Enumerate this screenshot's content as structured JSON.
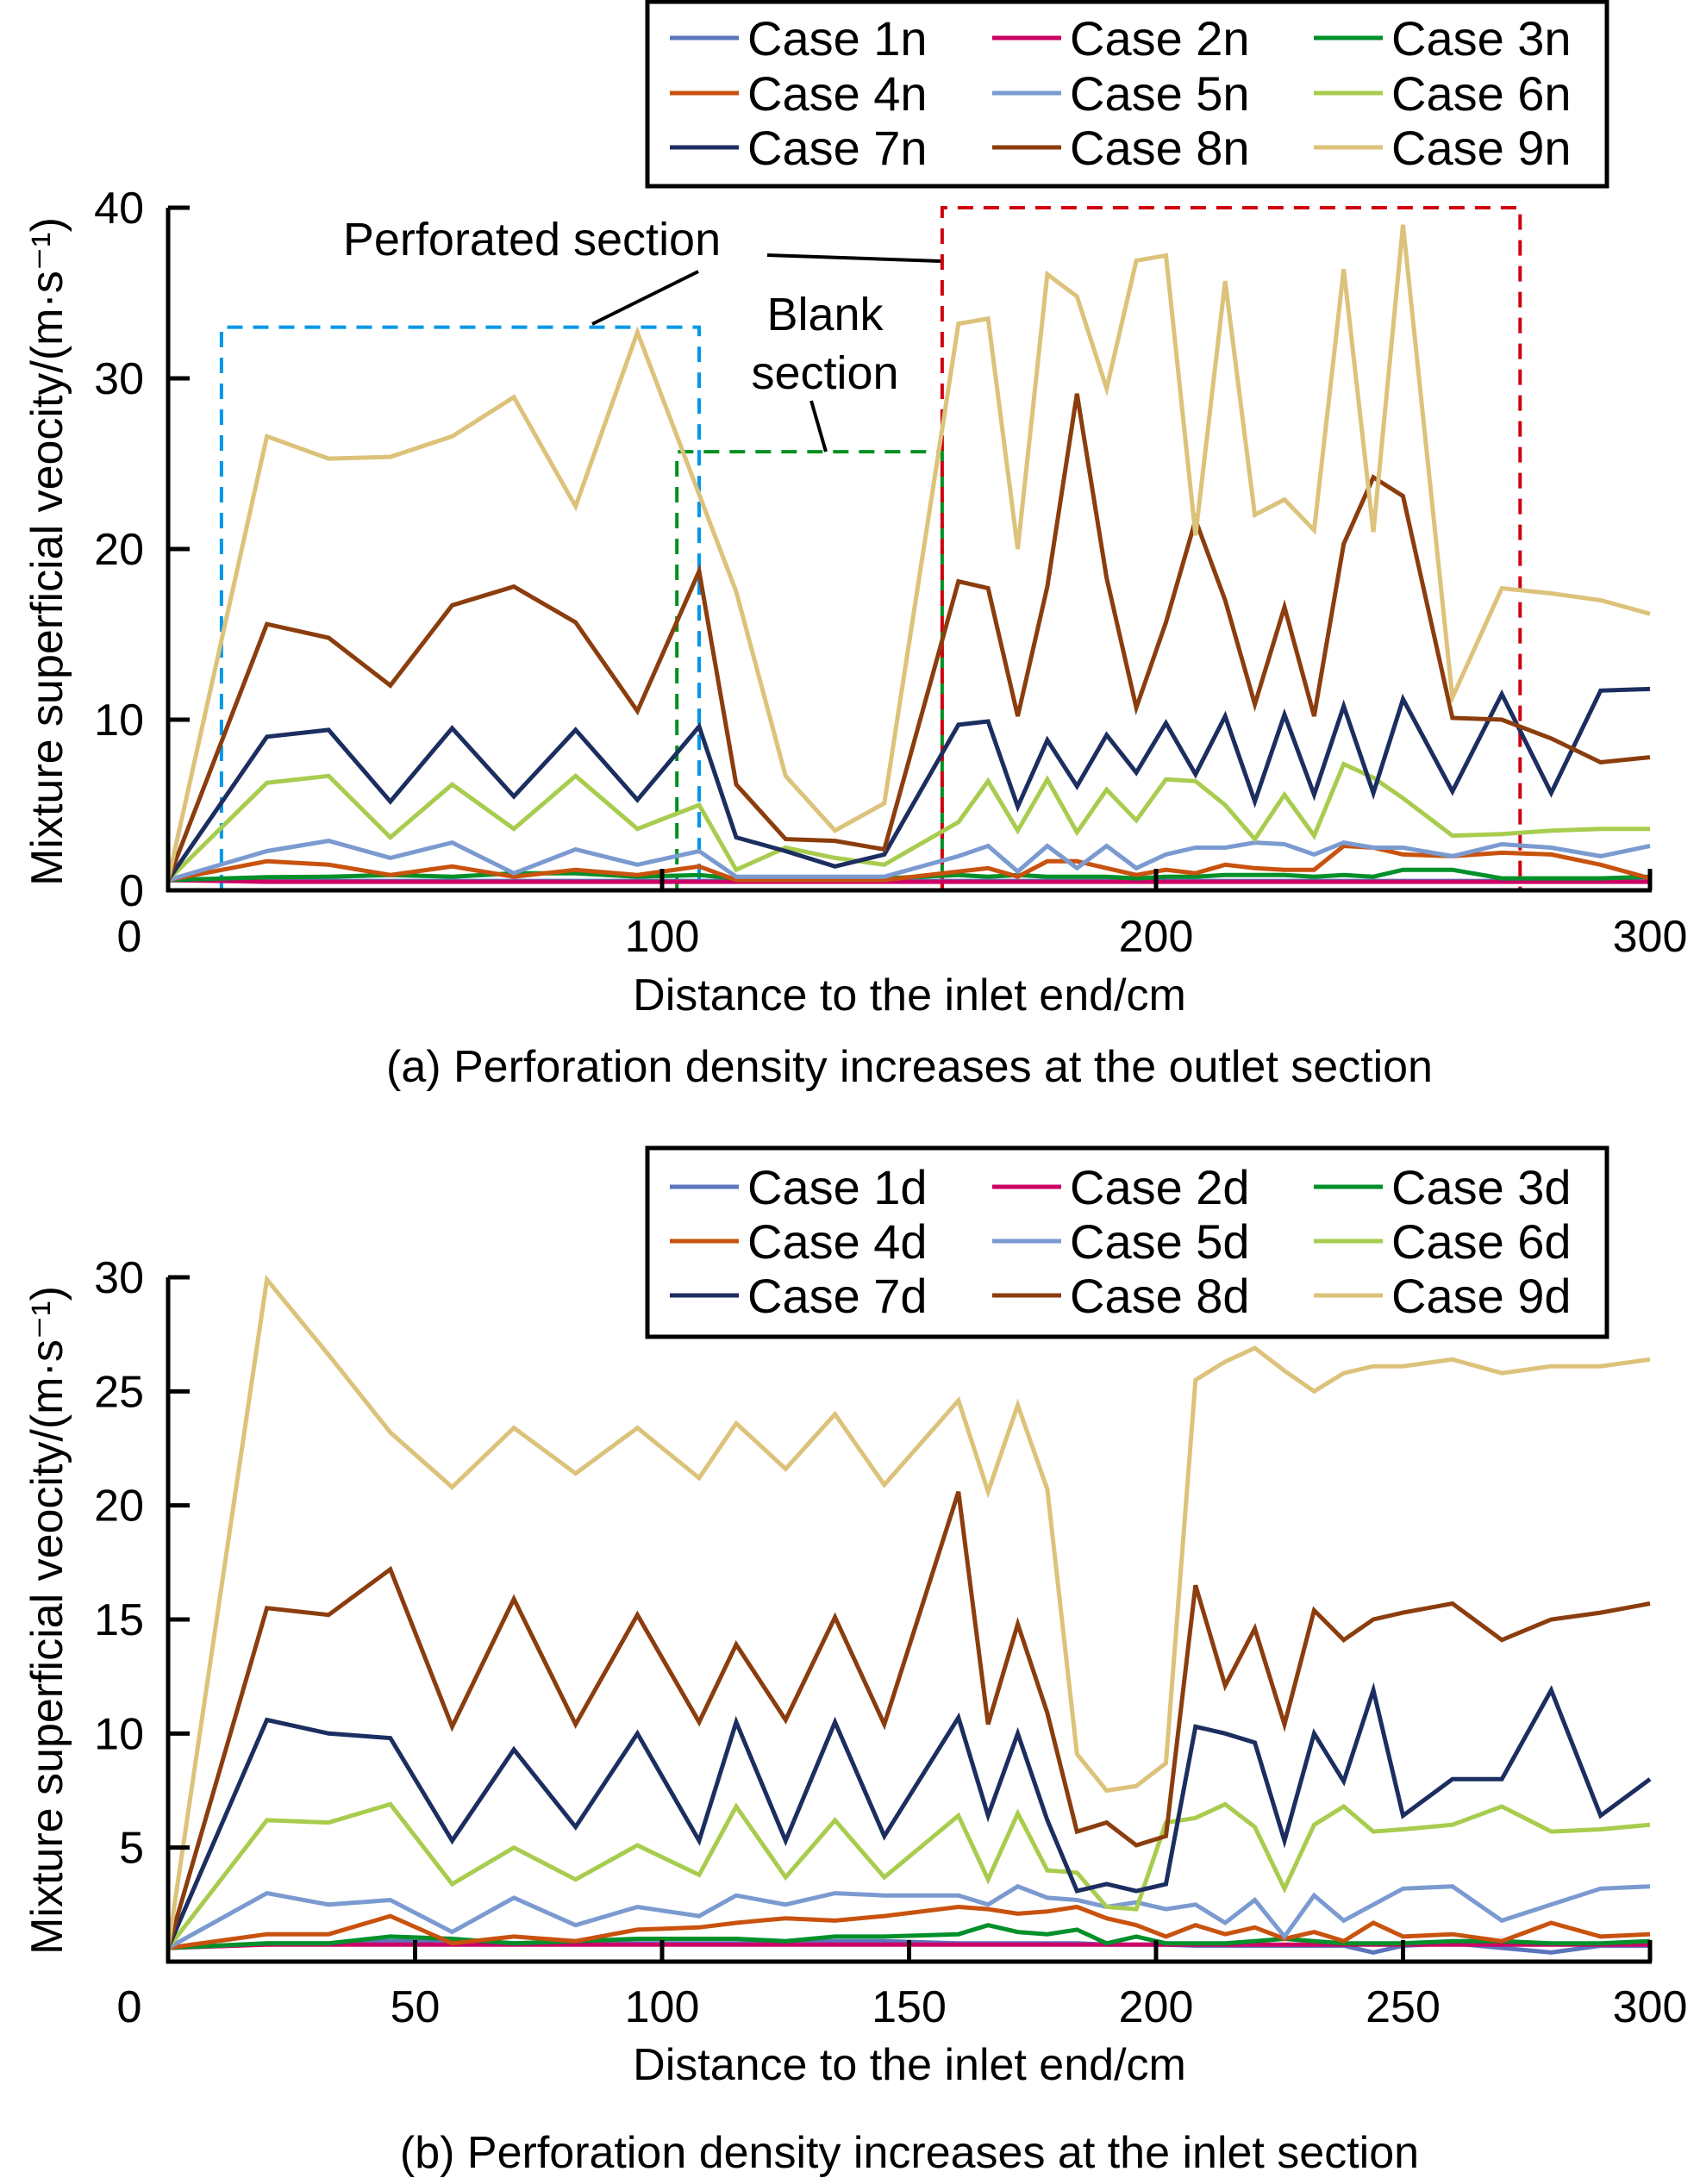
{
  "chart_data": [
    {
      "id": "a",
      "type": "line",
      "caption": "(a) Perforation density increases at the outlet section",
      "xlabel": "Distance to the inlet end/cm",
      "ylabel": "Mixture superficial veocity/(m·s⁻¹)",
      "xlim": [
        0,
        300
      ],
      "ylim": [
        0,
        40
      ],
      "xticks": [
        0,
        100,
        200,
        300
      ],
      "yticks": [
        0,
        10,
        20,
        30,
        40
      ],
      "legend_position": "top-right",
      "grid": false,
      "x": [
        0,
        20,
        32.5,
        45,
        57.5,
        70,
        82.5,
        95,
        107.5,
        115,
        125,
        135,
        145,
        160,
        166,
        172,
        178,
        184,
        190,
        196,
        202,
        208,
        214,
        220,
        226,
        232,
        238,
        244,
        250,
        260,
        270,
        280,
        290,
        300
      ],
      "series": [
        {
          "name": "Case 1n",
          "color": "#5b75bd",
          "values": [
            0.6,
            0.55,
            0.55,
            0.55,
            0.55,
            0.55,
            0.55,
            0.55,
            0.55,
            0.55,
            0.55,
            0.55,
            0.55,
            0.55,
            0.55,
            0.55,
            0.55,
            0.55,
            0.55,
            0.55,
            0.55,
            0.55,
            0.55,
            0.55,
            0.55,
            0.55,
            0.55,
            0.55,
            0.55,
            0.55,
            0.55,
            0.55,
            0.55,
            0.55
          ]
        },
        {
          "name": "Case 2n",
          "color": "#cc0066",
          "values": [
            0.6,
            0.5,
            0.5,
            0.5,
            0.5,
            0.5,
            0.5,
            0.5,
            0.5,
            0.5,
            0.5,
            0.5,
            0.5,
            0.5,
            0.5,
            0.5,
            0.5,
            0.5,
            0.5,
            0.5,
            0.5,
            0.5,
            0.5,
            0.5,
            0.5,
            0.5,
            0.5,
            0.5,
            0.5,
            0.5,
            0.5,
            0.5,
            0.5,
            0.5
          ]
        },
        {
          "name": "Case 3n",
          "color": "#00902a",
          "values": [
            0.6,
            0.77,
            0.8,
            0.9,
            0.8,
            1.0,
            1.0,
            0.8,
            0.9,
            0.7,
            0.7,
            0.7,
            0.7,
            0.9,
            0.8,
            0.9,
            0.8,
            0.8,
            0.8,
            0.7,
            0.8,
            0.8,
            0.9,
            0.9,
            0.9,
            0.8,
            0.9,
            0.8,
            1.2,
            1.2,
            0.7,
            0.7,
            0.7,
            0.8
          ]
        },
        {
          "name": "Case 4n",
          "color": "#c8520e",
          "values": [
            0.6,
            1.7,
            1.5,
            0.9,
            1.4,
            0.8,
            1.2,
            0.9,
            1.4,
            0.6,
            0.6,
            0.6,
            0.6,
            1.1,
            1.3,
            0.8,
            1.7,
            1.7,
            1.3,
            0.9,
            1.2,
            1.0,
            1.5,
            1.3,
            1.2,
            1.2,
            2.6,
            2.5,
            2.1,
            2.0,
            2.2,
            2.1,
            1.5,
            0.7
          ]
        },
        {
          "name": "Case 5n",
          "color": "#7a9ad0",
          "values": [
            0.6,
            2.3,
            2.9,
            1.9,
            2.8,
            1.0,
            2.4,
            1.5,
            2.3,
            0.8,
            0.8,
            0.8,
            0.8,
            2.0,
            2.6,
            1.1,
            2.6,
            1.3,
            2.6,
            1.3,
            2.1,
            2.5,
            2.5,
            2.8,
            2.7,
            2.1,
            2.8,
            2.5,
            2.5,
            2.0,
            2.7,
            2.5,
            2.0,
            2.6
          ]
        },
        {
          "name": "Case 6n",
          "color": "#a8cc4e",
          "values": [
            0.6,
            6.3,
            6.7,
            3.1,
            6.2,
            3.6,
            6.7,
            3.6,
            5.0,
            1.2,
            2.5,
            1.9,
            1.5,
            4.0,
            6.4,
            3.5,
            6.5,
            3.4,
            5.9,
            4.1,
            6.5,
            6.4,
            5.0,
            3.0,
            5.6,
            3.2,
            7.4,
            6.6,
            5.4,
            3.2,
            3.3,
            3.5,
            3.6,
            3.6
          ]
        },
        {
          "name": "Case 7n",
          "color": "#1c2e60",
          "values": [
            0.6,
            9.0,
            9.4,
            5.2,
            9.5,
            5.5,
            9.4,
            5.3,
            9.6,
            3.1,
            2.3,
            1.4,
            2.1,
            9.7,
            9.9,
            4.9,
            8.8,
            6.1,
            9.1,
            6.9,
            9.8,
            6.8,
            10.2,
            5.2,
            10.3,
            5.6,
            10.8,
            5.7,
            11.2,
            5.8,
            11.5,
            5.7,
            11.7,
            11.8
          ]
        },
        {
          "name": "Case 8n",
          "color": "#8b3d0e",
          "values": [
            0.6,
            15.6,
            14.8,
            12.0,
            16.7,
            17.8,
            15.7,
            10.5,
            18.7,
            6.2,
            3.0,
            2.9,
            2.4,
            18.1,
            17.7,
            10.2,
            17.8,
            29.1,
            18.3,
            10.7,
            15.7,
            21.7,
            17.0,
            10.9,
            16.6,
            10.2,
            20.3,
            24.2,
            23.1,
            10.1,
            10.0,
            8.9,
            7.5,
            7.8
          ]
        },
        {
          "name": "Case 9n",
          "color": "#dcc27a",
          "values": [
            0.6,
            26.6,
            25.3,
            25.4,
            26.6,
            28.9,
            22.5,
            32.7,
            23.2,
            17.5,
            6.7,
            3.5,
            5.1,
            33.2,
            33.5,
            20.0,
            36.1,
            34.8,
            29.4,
            36.9,
            37.2,
            20.8,
            35.7,
            22.0,
            22.9,
            21.1,
            36.4,
            21.0,
            39.0,
            11.3,
            17.7,
            17.4,
            17.0,
            16.2
          ]
        }
      ],
      "annotations": [
        {
          "label": "Perforated section",
          "region_x": [
            10.8,
            107.5
          ],
          "region_top": 33.0,
          "color": "#0098e8"
        },
        {
          "label": "Blank section",
          "label_lines": [
            "Blank",
            "section"
          ],
          "region_x": [
            103,
            156.7
          ],
          "region_top": 25.7,
          "color": "#009020"
        },
        {
          "label": "Perforated section",
          "region_x": [
            156.7,
            273.7
          ],
          "region_top": 40.0,
          "color": "#d00010"
        }
      ]
    },
    {
      "id": "b",
      "type": "line",
      "caption": "(b) Perforation density increases at the inlet section",
      "xlabel": "Distance to the inlet end/cm",
      "ylabel": "Mixture superficial veocity/(m·s⁻¹)",
      "xlim": [
        0,
        300
      ],
      "ylim": [
        0,
        30
      ],
      "xticks": [
        0,
        50,
        100,
        150,
        200,
        250,
        300
      ],
      "yticks": [
        5,
        10,
        15,
        20,
        25,
        30
      ],
      "legend_position": "top-right",
      "grid": false,
      "x": [
        0,
        20,
        32.5,
        45,
        57.5,
        70,
        82.5,
        95,
        107.5,
        115,
        125,
        135,
        145,
        160,
        166,
        172,
        178,
        184,
        190,
        196,
        202,
        208,
        214,
        220,
        226,
        232,
        238,
        244,
        250,
        260,
        270,
        280,
        290,
        300
      ],
      "series": [
        {
          "name": "Case 1d",
          "color": "#5b75bd",
          "values": [
            0.6,
            0.8,
            0.8,
            0.9,
            0.9,
            0.8,
            0.8,
            0.8,
            0.8,
            0.8,
            0.8,
            0.9,
            0.9,
            0.8,
            0.8,
            0.8,
            0.8,
            0.8,
            0.75,
            0.75,
            0.75,
            0.7,
            0.7,
            0.7,
            0.7,
            0.7,
            0.7,
            0.4,
            0.7,
            0.8,
            0.6,
            0.4,
            0.7,
            0.7
          ]
        },
        {
          "name": "Case 2d",
          "color": "#cc0066",
          "values": [
            0.6,
            0.75,
            0.75,
            0.75,
            0.75,
            0.75,
            0.75,
            0.75,
            0.75,
            0.75,
            0.75,
            0.75,
            0.75,
            0.75,
            0.75,
            0.75,
            0.75,
            0.75,
            0.75,
            0.75,
            0.75,
            0.75,
            0.75,
            0.75,
            0.75,
            0.75,
            0.75,
            0.75,
            0.75,
            0.75,
            0.75,
            0.75,
            0.75,
            0.75
          ]
        },
        {
          "name": "Case 3d",
          "color": "#00902a",
          "values": [
            0.6,
            0.8,
            0.8,
            1.1,
            1.0,
            0.8,
            0.9,
            1.0,
            1.0,
            1.0,
            0.9,
            1.1,
            1.1,
            1.2,
            1.6,
            1.3,
            1.2,
            1.4,
            0.8,
            1.1,
            0.8,
            0.8,
            0.8,
            0.9,
            1.0,
            0.9,
            0.8,
            0.8,
            0.8,
            0.9,
            0.9,
            0.8,
            0.8,
            0.9
          ]
        },
        {
          "name": "Case 4d",
          "color": "#c8520e",
          "values": [
            0.6,
            1.2,
            1.2,
            2.0,
            0.8,
            1.1,
            0.9,
            1.4,
            1.5,
            1.7,
            1.9,
            1.8,
            2.0,
            2.4,
            2.3,
            2.1,
            2.2,
            2.4,
            1.9,
            1.6,
            1.1,
            1.6,
            1.2,
            1.5,
            1.0,
            1.3,
            0.9,
            1.7,
            1.1,
            1.2,
            0.9,
            1.7,
            1.1,
            1.2
          ]
        },
        {
          "name": "Case 5d",
          "color": "#7a9ad0",
          "values": [
            0.6,
            3.0,
            2.5,
            2.7,
            1.3,
            2.8,
            1.6,
            2.4,
            2.0,
            2.9,
            2.5,
            3.0,
            2.9,
            2.9,
            2.5,
            3.3,
            2.8,
            2.7,
            2.4,
            2.6,
            2.3,
            2.5,
            1.7,
            2.7,
            1.1,
            2.9,
            1.8,
            2.5,
            3.2,
            3.3,
            1.8,
            2.5,
            3.2,
            3.3
          ]
        },
        {
          "name": "Case 6d",
          "color": "#a8cc4e",
          "values": [
            0.6,
            6.2,
            6.1,
            6.9,
            3.4,
            5.0,
            3.6,
            5.1,
            3.8,
            6.8,
            3.7,
            6.2,
            3.7,
            6.4,
            3.6,
            6.5,
            4.0,
            3.9,
            2.4,
            2.3,
            6.1,
            6.3,
            6.9,
            5.9,
            3.2,
            6.0,
            6.8,
            5.7,
            5.8,
            6.0,
            6.8,
            5.7,
            5.8,
            6.0
          ]
        },
        {
          "name": "Case 7d",
          "color": "#1c2e60",
          "values": [
            0.6,
            10.6,
            10.0,
            9.8,
            5.3,
            9.3,
            5.9,
            10.0,
            5.3,
            10.5,
            5.3,
            10.5,
            5.5,
            10.7,
            6.4,
            10.0,
            6.2,
            3.1,
            3.4,
            3.1,
            3.4,
            10.3,
            10.0,
            9.6,
            5.3,
            10.0,
            7.9,
            11.9,
            6.4,
            8.0,
            8.0,
            11.9,
            6.4,
            8.0
          ]
        },
        {
          "name": "Case 8d",
          "color": "#8b3d0e",
          "values": [
            0.6,
            15.5,
            15.2,
            17.2,
            10.3,
            15.9,
            10.4,
            15.2,
            10.5,
            13.9,
            10.6,
            15.1,
            10.4,
            20.6,
            10.4,
            14.8,
            10.9,
            5.7,
            6.1,
            5.1,
            5.5,
            16.5,
            12.1,
            14.6,
            10.4,
            15.4,
            14.1,
            15.0,
            15.3,
            15.7,
            14.1,
            15.0,
            15.3,
            15.7
          ]
        },
        {
          "name": "Case 9d",
          "color": "#dcc27a",
          "values": [
            0.6,
            29.9,
            26.6,
            23.2,
            20.8,
            23.4,
            21.4,
            23.4,
            21.2,
            23.6,
            21.6,
            24.0,
            20.9,
            24.6,
            20.6,
            24.4,
            20.7,
            9.1,
            7.5,
            7.7,
            8.7,
            25.5,
            26.3,
            26.9,
            25.9,
            25.0,
            25.8,
            26.1,
            26.1,
            26.4,
            25.8,
            26.1,
            26.1,
            26.4
          ]
        }
      ]
    }
  ],
  "origin_label": "0"
}
